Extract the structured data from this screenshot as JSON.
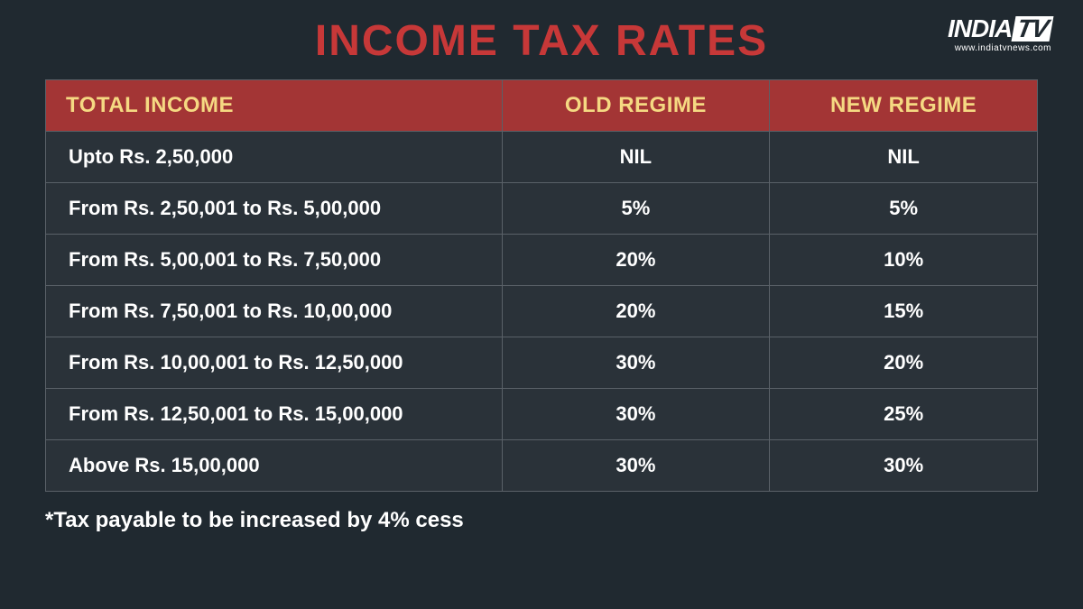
{
  "title": "INCOME TAX RATES",
  "logo": {
    "brand_part1": "INDIA",
    "brand_part2": "TV",
    "url": "www.indiatvnews.com"
  },
  "table": {
    "type": "table",
    "columns": [
      "TOTAL INCOME",
      "OLD REGIME",
      "NEW REGIME"
    ],
    "rows": [
      [
        "Upto Rs. 2,50,000",
        "NIL",
        "NIL"
      ],
      [
        "From Rs. 2,50,001 to Rs. 5,00,000",
        "5%",
        "5%"
      ],
      [
        "From Rs. 5,00,001 to Rs. 7,50,000",
        "20%",
        "10%"
      ],
      [
        "From Rs. 7,50,001 to Rs. 10,00,000",
        "20%",
        "15%"
      ],
      [
        "From Rs. 10,00,001 to Rs. 12,50,000",
        "30%",
        "20%"
      ],
      [
        "From Rs. 12,50,001 to Rs. 15,00,000",
        "30%",
        "25%"
      ],
      [
        "Above Rs. 15,00,000",
        "30%",
        "30%"
      ]
    ],
    "header_background_color": "#a33535",
    "header_text_color": "#f5d982",
    "header_fontsize": 24,
    "cell_background_color": "#2a3239",
    "cell_text_color": "#ffffff",
    "cell_fontsize": 22,
    "border_color": "#5a6168",
    "column_widths": [
      "46%",
      "27%",
      "27%"
    ]
  },
  "footnote": "*Tax payable to be increased by 4% cess",
  "styling": {
    "background_color": "#202930",
    "title_color": "#c73838",
    "title_fontsize": 48,
    "footnote_color": "#ffffff",
    "footnote_fontsize": 24,
    "logo_text_color": "#ffffff"
  }
}
